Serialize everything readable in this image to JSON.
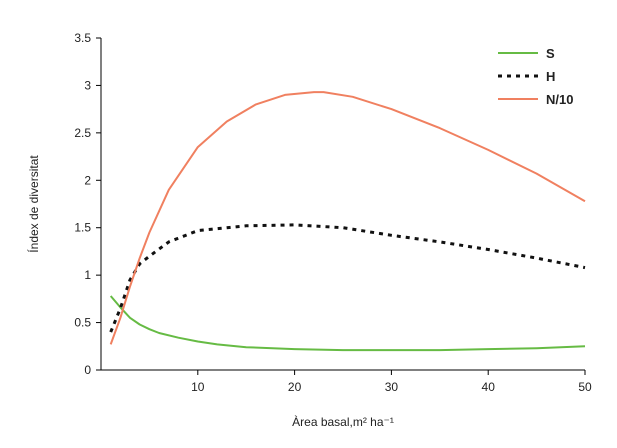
{
  "chart_data": {
    "type": "line",
    "xlabel": "Àrea basal,m² ha⁻¹",
    "ylabel": "Índex de diversitat",
    "xlim": [
      0,
      50
    ],
    "ylim": [
      0,
      3.5
    ],
    "xticks": [
      "10",
      "20",
      "30",
      "40",
      "50"
    ],
    "yticks": [
      "0",
      "0.5",
      "1",
      "1.5",
      "2",
      "2.5",
      "3",
      "3.5"
    ],
    "legend_position": "top-right",
    "grid": false,
    "series": [
      {
        "name": "S",
        "color": "#66bb44",
        "style": "solid",
        "x": [
          1,
          2,
          3,
          4,
          5,
          6,
          8,
          10,
          12,
          15,
          20,
          25,
          30,
          35,
          40,
          45,
          50
        ],
        "values": [
          0.78,
          0.66,
          0.55,
          0.48,
          0.43,
          0.39,
          0.34,
          0.3,
          0.27,
          0.24,
          0.22,
          0.21,
          0.21,
          0.21,
          0.22,
          0.23,
          0.25
        ]
      },
      {
        "name": "H",
        "color": "#111111",
        "style": "dotted",
        "x": [
          1,
          2,
          3,
          4,
          5,
          7,
          10,
          15,
          20,
          25,
          30,
          35,
          40,
          45,
          50
        ],
        "values": [
          0.4,
          0.65,
          0.95,
          1.12,
          1.2,
          1.35,
          1.47,
          1.52,
          1.53,
          1.5,
          1.42,
          1.35,
          1.27,
          1.18,
          1.08
        ]
      },
      {
        "name": "N/10",
        "color": "#f08060",
        "style": "solid",
        "x": [
          1,
          2,
          3,
          4,
          5,
          7,
          10,
          13,
          16,
          19,
          22,
          23,
          26,
          30,
          35,
          40,
          45,
          50
        ],
        "values": [
          0.27,
          0.55,
          0.88,
          1.18,
          1.45,
          1.9,
          2.35,
          2.62,
          2.8,
          2.9,
          2.93,
          2.93,
          2.88,
          2.75,
          2.55,
          2.32,
          2.07,
          1.78
        ]
      }
    ]
  }
}
